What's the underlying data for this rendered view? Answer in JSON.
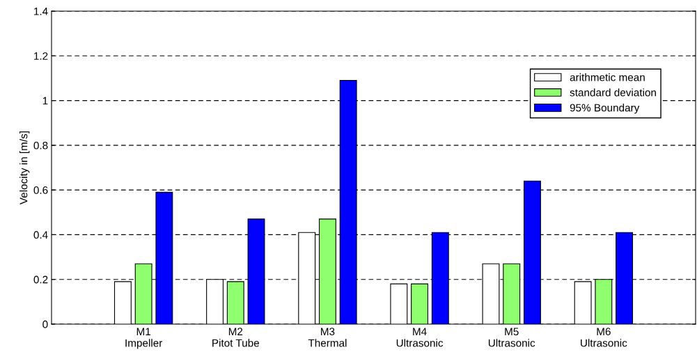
{
  "chart_data": {
    "type": "bar",
    "ylabel": "Velocity in [m/s]",
    "categories": [
      "M1\nImpeller",
      "M2\nPitot Tube",
      "M3\nThermal",
      "M4\nUltrasonic",
      "M5\nUltrasonic",
      "M6\nUltrasonic"
    ],
    "series": [
      {
        "name": "arithmetic mean",
        "color": "#ffffff",
        "values": [
          0.19,
          0.2,
          0.41,
          0.18,
          0.27,
          0.19
        ]
      },
      {
        "name": "standard deviation",
        "color": "#8fff6f",
        "values": [
          0.27,
          0.19,
          0.47,
          0.18,
          0.27,
          0.2
        ]
      },
      {
        "name": "95% Boundary",
        "color": "#0000ff",
        "values": [
          0.59,
          0.47,
          1.09,
          0.41,
          0.64,
          0.41
        ]
      }
    ],
    "ylim": [
      0,
      1.4
    ],
    "yticks": [
      0,
      0.2,
      0.4,
      0.6,
      0.8,
      1,
      1.2,
      1.4
    ],
    "grid": "y",
    "legend": "top right"
  }
}
